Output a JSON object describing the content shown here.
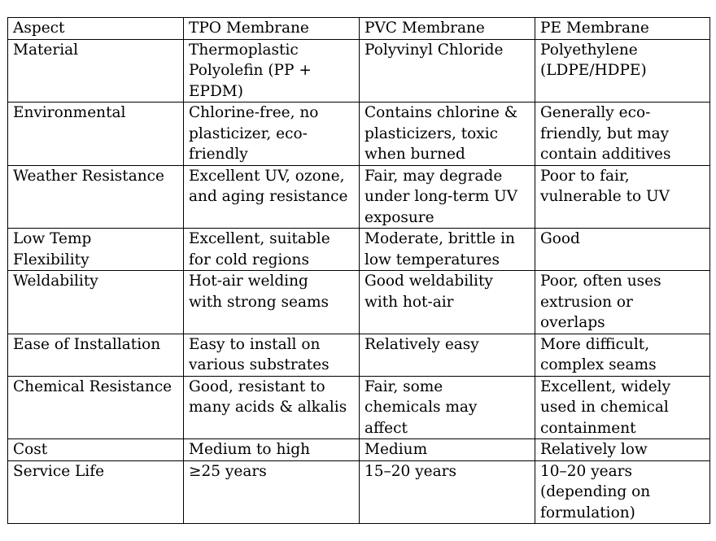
{
  "table": {
    "headers": [
      "Aspect",
      "TPO Membrane",
      "PVC Membrane",
      "PE Membrane"
    ],
    "rows": [
      {
        "cells": [
          [
            "Material"
          ],
          [
            "Thermoplastic",
            "Polyolefin (PP +",
            "EPDM)"
          ],
          [
            "Polyvinyl Chloride"
          ],
          [
            "Polyethylene",
            "(LDPE/HDPE)"
          ]
        ]
      },
      {
        "cells": [
          [
            "Environmental"
          ],
          [
            "Chlorine-free, no",
            "plasticizer, eco-",
            "friendly"
          ],
          [
            "Contains chlorine &",
            "plasticizers, toxic",
            "when burned"
          ],
          [
            "Generally eco-",
            "friendly, but may",
            "contain additives"
          ]
        ]
      },
      {
        "cells": [
          [
            "Weather Resistance"
          ],
          [
            "Excellent UV, ozone,",
            "and aging resistance"
          ],
          [
            "Fair, may degrade",
            "under long-term UV",
            "exposure"
          ],
          [
            "Poor to fair,",
            "vulnerable to UV"
          ]
        ]
      },
      {
        "cells": [
          [
            "Low Temp",
            "Flexibility"
          ],
          [
            "Excellent, suitable",
            "for cold regions"
          ],
          [
            "Moderate, brittle in",
            "low temperatures"
          ],
          [
            "Good"
          ]
        ]
      },
      {
        "cells": [
          [
            "Weldability"
          ],
          [
            "Hot-air welding",
            "with strong seams"
          ],
          [
            "Good weldability",
            "with hot-air"
          ],
          [
            "Poor, often uses",
            "extrusion or",
            "overlaps"
          ]
        ]
      },
      {
        "cells": [
          [
            "Ease of Installation"
          ],
          [
            "Easy to install on",
            "various substrates"
          ],
          [
            "Relatively easy"
          ],
          [
            "More difficult,",
            "complex seams"
          ]
        ]
      },
      {
        "cells": [
          [
            "Chemical Resistance"
          ],
          [
            "Good, resistant to",
            "many acids & alkalis"
          ],
          [
            "Fair, some",
            "chemicals may",
            "affect"
          ],
          [
            "Excellent, widely",
            "used in chemical",
            "containment"
          ]
        ]
      },
      {
        "cells": [
          [
            "Cost"
          ],
          [
            "Medium to high"
          ],
          [
            "Medium"
          ],
          [
            "Relatively low"
          ]
        ]
      },
      {
        "cells": [
          [
            "Service Life"
          ],
          [
            "≥25 years"
          ],
          [
            "15–20 years"
          ],
          [
            "10–20 years",
            "(depending on",
            "formulation)"
          ]
        ]
      }
    ]
  }
}
